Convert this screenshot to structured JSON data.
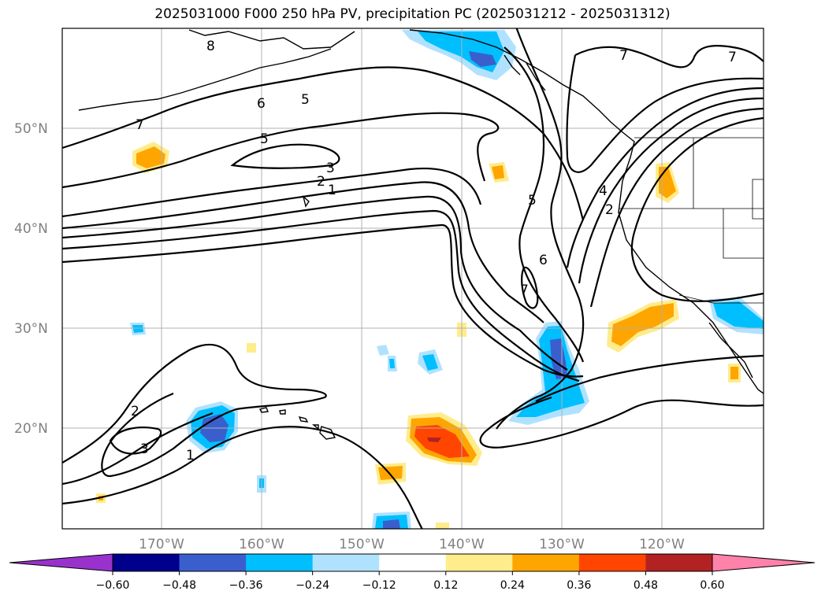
{
  "title": "2025031000 F000 250 hPa PV, precipitation PC (2025031212 - 2025031312)",
  "lat_labels": [
    "50°N",
    "40°N",
    "30°N",
    "20°N"
  ],
  "lon_labels": [
    "170°W",
    "160°W",
    "150°W",
    "140°W",
    "130°W",
    "120°W"
  ],
  "contour_labels": [
    "8",
    "7",
    "6",
    "5",
    "5",
    "3",
    "2",
    "1",
    "7",
    "5",
    "6",
    "7",
    "4",
    "2",
    "7",
    "2",
    "3",
    "1"
  ],
  "colorbar": {
    "ticks": [
      "−0.60",
      "−0.48",
      "−0.36",
      "−0.24",
      "−0.12",
      "0.12",
      "0.24",
      "0.36",
      "0.48",
      "0.60"
    ],
    "colors": [
      "#9932cc",
      "#00008b",
      "#3a5fcd",
      "#00bfff",
      "#b0e2ff",
      "#ffffff",
      "#ffec8b",
      "#ffa500",
      "#ff4500",
      "#b22222",
      "#ff82ab"
    ]
  },
  "shading_colors": {
    "neg_light": "#b0e2ff",
    "neg_mid": "#00bfff",
    "neg_strong": "#3a5fcd",
    "pos_light": "#ffec8b",
    "pos_mid": "#ffa500",
    "pos_strong": "#ff4500",
    "pos_max": "#b22222"
  }
}
